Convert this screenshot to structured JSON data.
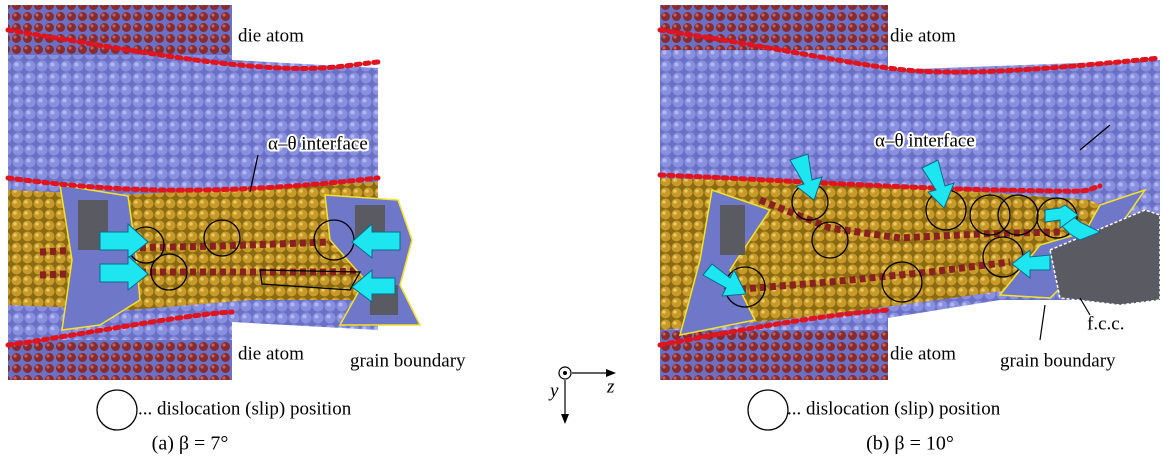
{
  "panels": [
    {
      "labels": [
        "die atom",
        "α–θ interface",
        "die atom",
        "grain boundary"
      ],
      "legend": "... dislocation (slip) position",
      "caption": "(a) β = 7°"
    },
    {
      "labels": [
        "die atom",
        "α–θ interface",
        "die atom",
        "grain boundary",
        "f.c.c."
      ],
      "legend": "... dislocation (slip) position",
      "caption": "(b) β = 10°"
    }
  ],
  "axes": {
    "y": "y",
    "z": "z"
  }
}
